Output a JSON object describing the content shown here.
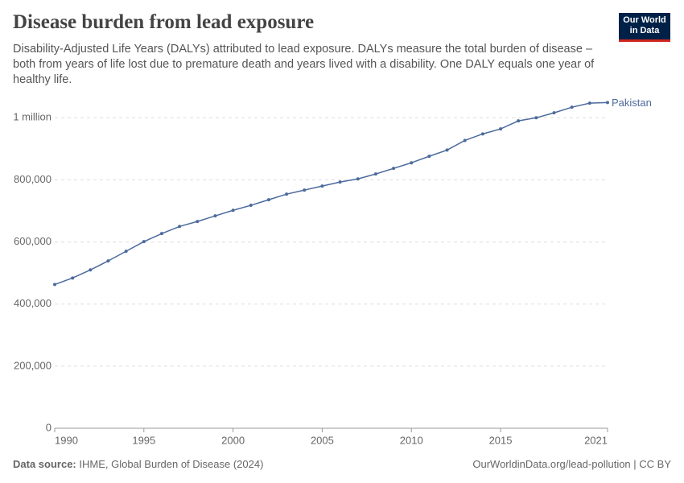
{
  "chart_data": {
    "type": "line",
    "title": "Disease burden from lead exposure",
    "subtitle": "Disability-Adjusted Life Years (DALYs) attributed to lead exposure. DALYs measure the total burden of disease – both from years of life lost due to premature death and years lived with a disability. One DALY equals one year of healthy life.",
    "logo": [
      "Our World",
      "in Data"
    ],
    "source_label": "Data source:",
    "source": "IHME, Global Burden of Disease (2024)",
    "footer_right": "OurWorldinData.org/lead-pollution | CC BY",
    "x": [
      1990,
      1991,
      1992,
      1993,
      1994,
      1995,
      1996,
      1997,
      1998,
      1999,
      2000,
      2001,
      2002,
      2003,
      2004,
      2005,
      2006,
      2007,
      2008,
      2009,
      2010,
      2011,
      2012,
      2013,
      2014,
      2015,
      2016,
      2017,
      2018,
      2019,
      2020,
      2021
    ],
    "series": [
      {
        "name": "Pakistan",
        "color": "#4c6a9c",
        "values": [
          463000,
          484000,
          510000,
          539000,
          570000,
          601000,
          627000,
          650000,
          666000,
          684000,
          702000,
          718000,
          736000,
          754000,
          767000,
          780000,
          793000,
          803000,
          819000,
          837000,
          855000,
          876000,
          896000,
          927000,
          948000,
          964000,
          990000,
          1000000,
          1016000,
          1034000,
          1047000,
          1049000
        ]
      }
    ],
    "xlim": [
      1990,
      2021
    ],
    "xticks": [
      1990,
      1995,
      2000,
      2005,
      2010,
      2015,
      2021
    ],
    "ylim": [
      0,
      1050000
    ],
    "yticks": [
      0,
      {
        "value": 200000,
        "label": "200,000"
      },
      {
        "value": 400000,
        "label": "400,000"
      },
      {
        "value": 600000,
        "label": "600,000"
      },
      {
        "value": 800000,
        "label": "800,000"
      },
      {
        "value": 1000000,
        "label": "1 million"
      }
    ],
    "grid": true
  }
}
